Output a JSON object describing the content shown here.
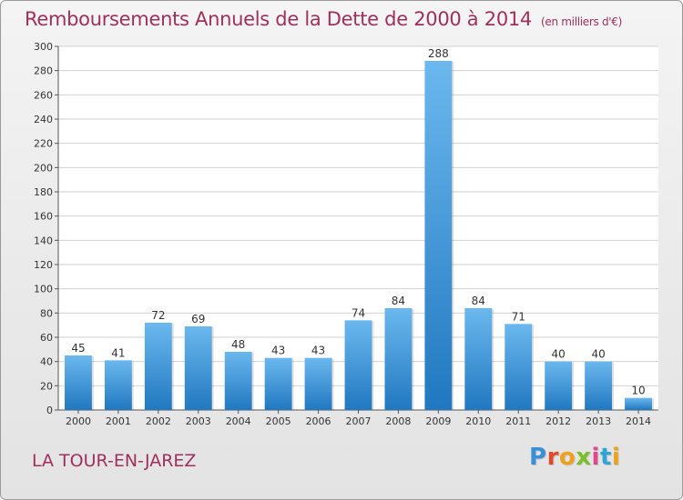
{
  "header": {
    "title": "Remboursements Annuels de la Dette de 2000 à 2014",
    "unit": "(en milliers d'€)"
  },
  "footer": {
    "location": "LA TOUR-EN-JAREZ",
    "logo": "Proxiti"
  },
  "colors": {
    "bar_light": "#6bb8ee",
    "bar_dark": "#2178c0",
    "title": "#a0305a",
    "grid": "#d2d2d2"
  },
  "chart_data": {
    "type": "bar",
    "title": "Remboursements Annuels de la Dette de 2000 à 2014",
    "xlabel": "",
    "ylabel": "",
    "ylim": [
      0,
      300
    ],
    "ytick_step": 20,
    "grid": true,
    "categories": [
      "2000",
      "2001",
      "2002",
      "2003",
      "2004",
      "2005",
      "2006",
      "2007",
      "2008",
      "2009",
      "2010",
      "2011",
      "2012",
      "2013",
      "2014"
    ],
    "values": [
      45,
      41,
      72,
      69,
      48,
      43,
      43,
      74,
      84,
      288,
      84,
      71,
      40,
      40,
      10
    ]
  }
}
